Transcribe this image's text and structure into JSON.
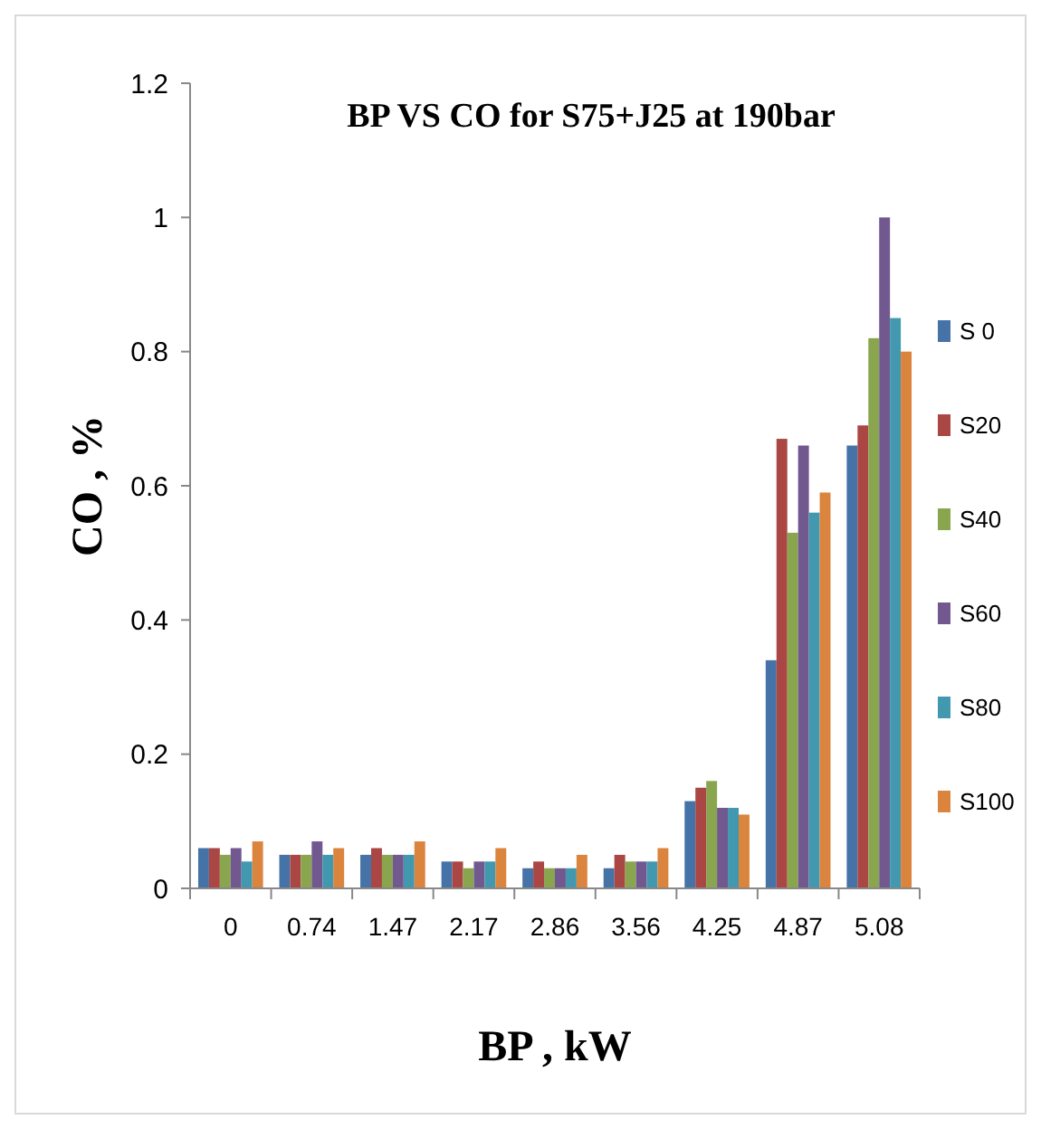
{
  "chart_data": {
    "type": "bar",
    "title": "BP VS CO for S75+J25 at 190bar",
    "xlabel": "BP , kW",
    "ylabel": "CO , %",
    "categories": [
      "0",
      "0.74",
      "1.47",
      "2.17",
      "2.86",
      "3.56",
      "4.25",
      "4.87",
      "5.08"
    ],
    "series": [
      {
        "name": "S 0",
        "color": "#4572a7",
        "values": [
          0.06,
          0.05,
          0.05,
          0.04,
          0.03,
          0.03,
          0.13,
          0.34,
          0.66
        ]
      },
      {
        "name": "S20",
        "color": "#aa4643",
        "values": [
          0.06,
          0.05,
          0.06,
          0.04,
          0.04,
          0.05,
          0.15,
          0.67,
          0.69
        ]
      },
      {
        "name": "S40",
        "color": "#89a54e",
        "values": [
          0.05,
          0.05,
          0.05,
          0.03,
          0.03,
          0.04,
          0.16,
          0.53,
          0.82
        ]
      },
      {
        "name": "S60",
        "color": "#71588f",
        "values": [
          0.06,
          0.07,
          0.05,
          0.04,
          0.03,
          0.04,
          0.12,
          0.66,
          1.0
        ]
      },
      {
        "name": "S80",
        "color": "#4198af",
        "values": [
          0.04,
          0.05,
          0.05,
          0.04,
          0.03,
          0.04,
          0.12,
          0.56,
          0.85
        ]
      },
      {
        "name": "S100",
        "color": "#db843d",
        "values": [
          0.07,
          0.06,
          0.07,
          0.06,
          0.05,
          0.06,
          0.11,
          0.59,
          0.8
        ]
      }
    ],
    "ylim": [
      0,
      1.2
    ],
    "yticks": [
      0,
      0.2,
      0.4,
      0.6,
      0.8,
      1,
      1.2
    ],
    "grid": false,
    "legend": "right"
  }
}
